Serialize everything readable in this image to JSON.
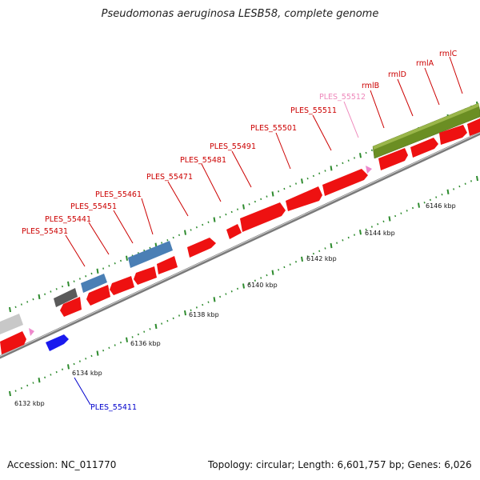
{
  "title": "Pseudomonas aeruginosa LESB58, complete genome",
  "footer": {
    "accession": "Accession: NC_011770",
    "summary": "Topology: circular; Length: 6,601,757 bp; Genes: 6,026"
  },
  "colors": {
    "background": "#ffffff",
    "backbone": "#8c8c8c",
    "tick": "#2e8b2e",
    "gene_label": "#cc0000",
    "pseudo_label": "#ee88bb",
    "blue_label": "#0000cc",
    "gene_red": "#ee1111",
    "gene_steelblue": "#4a7fb5",
    "gene_darkgray": "#5a5a5a",
    "gene_lightgray": "#c8c8c8",
    "gene_blue": "#1a1aee",
    "operon_green": "#6b8e23",
    "pink_marker": "#ee88cc"
  },
  "kbp_ticks": [
    "6132 kbp",
    "6134 kbp",
    "6136 kbp",
    "6138 kbp",
    "6140 kbp",
    "6142 kbp",
    "6144 kbp",
    "6146 kbp"
  ],
  "gene_labels": [
    "PLES_55431",
    "PLES_55441",
    "PLES_55451",
    "PLES_55461",
    "PLES_55471",
    "PLES_55481",
    "PLES_55491",
    "PLES_55501",
    "PLES_55511",
    "PLES_55512",
    "rmlB",
    "rmlD",
    "rmlA",
    "rmlC",
    "PLES_55411"
  ]
}
